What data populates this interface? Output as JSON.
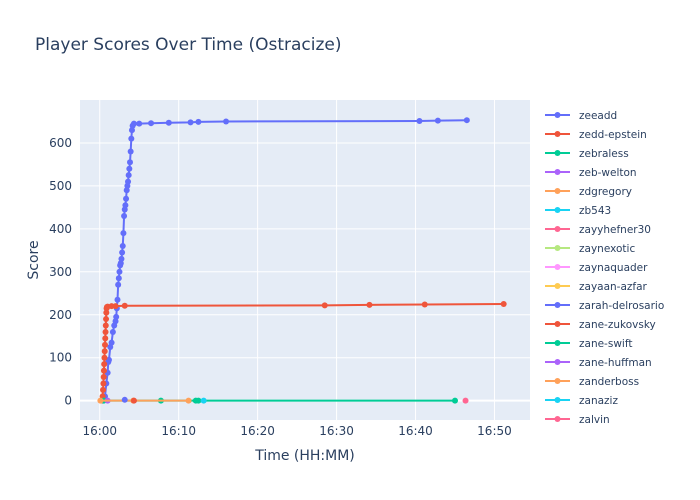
{
  "chart_data": {
    "type": "line",
    "title": "Player Scores Over Time (Ostracize)",
    "xlabel": "Time (HH:MM)",
    "ylabel": "Score",
    "x_ticks": [
      "16:00",
      "16:10",
      "16:20",
      "16:30",
      "16:40",
      "16:50"
    ],
    "y_ticks": [
      0,
      100,
      200,
      300,
      400,
      500,
      600
    ],
    "xlim": [
      "15:57:30",
      "16:54:30"
    ],
    "ylim": [
      -45,
      700
    ],
    "grid": true,
    "legend_position": "right",
    "plot_background": "#e5ecf6",
    "series": [
      {
        "name": "zeeadd",
        "color": "#636efa",
        "points": [
          [
            "16:00:30",
            0
          ],
          [
            "16:00:40",
            10
          ],
          [
            "16:00:50",
            40
          ],
          [
            "16:01:00",
            65
          ],
          [
            "16:01:05",
            90
          ],
          [
            "16:01:10",
            95
          ],
          [
            "16:01:20",
            125
          ],
          [
            "16:01:30",
            135
          ],
          [
            "16:01:40",
            160
          ],
          [
            "16:01:50",
            175
          ],
          [
            "16:02:00",
            185
          ],
          [
            "16:02:05",
            195
          ],
          [
            "16:02:10",
            215
          ],
          [
            "16:02:15",
            235
          ],
          [
            "16:02:20",
            270
          ],
          [
            "16:02:25",
            285
          ],
          [
            "16:02:30",
            300
          ],
          [
            "16:02:35",
            315
          ],
          [
            "16:02:40",
            320
          ],
          [
            "16:02:45",
            330
          ],
          [
            "16:02:50",
            345
          ],
          [
            "16:02:55",
            360
          ],
          [
            "16:03:00",
            390
          ],
          [
            "16:03:05",
            430
          ],
          [
            "16:03:10",
            445
          ],
          [
            "16:03:15",
            455
          ],
          [
            "16:03:20",
            470
          ],
          [
            "16:03:25",
            490
          ],
          [
            "16:03:30",
            500
          ],
          [
            "16:03:35",
            510
          ],
          [
            "16:03:40",
            525
          ],
          [
            "16:03:45",
            540
          ],
          [
            "16:03:50",
            555
          ],
          [
            "16:03:55",
            580
          ],
          [
            "16:04:00",
            610
          ],
          [
            "16:04:05",
            630
          ],
          [
            "16:04:10",
            640
          ],
          [
            "16:04:20",
            645
          ],
          [
            "16:05:00",
            645
          ],
          [
            "16:06:30",
            646
          ],
          [
            "16:08:45",
            647
          ],
          [
            "16:11:30",
            648
          ],
          [
            "16:12:30",
            649
          ],
          [
            "16:16:00",
            650
          ],
          [
            "16:40:30",
            651
          ],
          [
            "16:42:50",
            652
          ],
          [
            "16:46:30",
            653
          ]
        ]
      },
      {
        "name": "zedd-epstein",
        "color": "#ef553b",
        "points": [
          [
            "16:00:20",
            0
          ],
          [
            "16:00:22",
            10
          ],
          [
            "16:00:25",
            25
          ],
          [
            "16:00:28",
            40
          ],
          [
            "16:00:30",
            55
          ],
          [
            "16:00:32",
            70
          ],
          [
            "16:00:34",
            85
          ],
          [
            "16:00:36",
            100
          ],
          [
            "16:00:38",
            115
          ],
          [
            "16:00:40",
            130
          ],
          [
            "16:00:42",
            145
          ],
          [
            "16:00:44",
            160
          ],
          [
            "16:00:46",
            175
          ],
          [
            "16:00:48",
            190
          ],
          [
            "16:00:50",
            205
          ],
          [
            "16:00:52",
            215
          ],
          [
            "16:00:55",
            218
          ],
          [
            "16:01:00",
            219
          ],
          [
            "16:01:30",
            220
          ],
          [
            "16:02:00",
            220
          ],
          [
            "16:03:10",
            221
          ],
          [
            "16:28:30",
            222
          ],
          [
            "16:34:10",
            223
          ],
          [
            "16:41:10",
            224
          ],
          [
            "16:51:10",
            225
          ]
        ]
      },
      {
        "name": "zebraless",
        "color": "#00cc96",
        "points": [
          [
            "16:00:30",
            0
          ],
          [
            "16:07:45",
            0
          ],
          [
            "16:12:30",
            0
          ],
          [
            "16:45:00",
            0
          ]
        ]
      },
      {
        "name": "zeb-welton",
        "color": "#ab63fa",
        "points": [
          [
            "16:01:00",
            0
          ]
        ]
      },
      {
        "name": "zdgregory",
        "color": "#ffa15a",
        "points": [
          [
            "16:00:05",
            0
          ],
          [
            "16:04:15",
            0
          ],
          [
            "16:11:15",
            0
          ]
        ]
      },
      {
        "name": "zb543",
        "color": "#19d3f3",
        "points": [
          [
            "16:13:10",
            0
          ]
        ]
      },
      {
        "name": "zayyhefner30",
        "color": "#ff6692",
        "points": [
          [
            "16:46:20",
            0
          ]
        ]
      },
      {
        "name": "zaynexotic",
        "color": "#b6e880",
        "points": []
      },
      {
        "name": "zaynaquader",
        "color": "#ff97ff",
        "points": []
      },
      {
        "name": "zayaan-azfar",
        "color": "#fecb52",
        "points": []
      },
      {
        "name": "zarah-delrosario",
        "color": "#636efa",
        "points": [
          [
            "16:03:10",
            2
          ]
        ]
      },
      {
        "name": "zane-zukovsky",
        "color": "#ef553b",
        "points": [
          [
            "16:04:20",
            0
          ]
        ]
      },
      {
        "name": "zane-swift",
        "color": "#00cc96",
        "points": [
          [
            "16:12:10",
            0
          ]
        ]
      },
      {
        "name": "zane-huffman",
        "color": "#ab63fa",
        "points": []
      },
      {
        "name": "zanderboss",
        "color": "#ffa15a",
        "points": []
      },
      {
        "name": "zanaziz",
        "color": "#19d3f3",
        "points": []
      },
      {
        "name": "zalvin",
        "color": "#ff6692",
        "points": []
      }
    ]
  }
}
